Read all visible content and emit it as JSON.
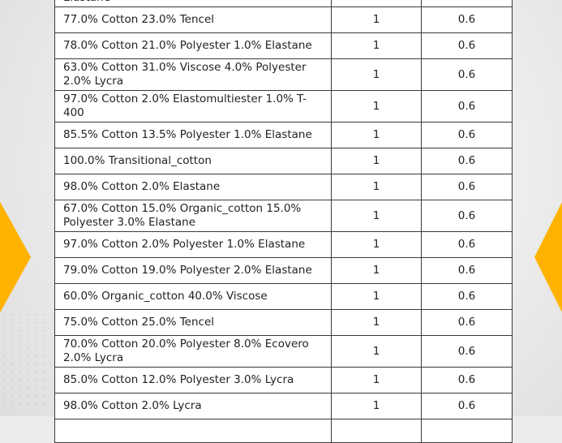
{
  "rows": [
    {
      "composition": "Elastane",
      "col2": "",
      "col3": ""
    },
    {
      "composition": "77.0% Cotton 23.0% Tencel",
      "col2": "1",
      "col3": "0.6"
    },
    {
      "composition": "78.0% Cotton 21.0% Polyester 1.0% Elastane",
      "col2": "1",
      "col3": "0.6"
    },
    {
      "composition": "63.0% Cotton 31.0% Viscose 4.0% Polyester 2.0% Lycra",
      "col2": "1",
      "col3": "0.6"
    },
    {
      "composition": "97.0% Cotton 2.0% Elastomultiester 1.0% T-400",
      "col2": "1",
      "col3": "0.6"
    },
    {
      "composition": "85.5% Cotton 13.5% Polyester 1.0% Elastane",
      "col2": "1",
      "col3": "0.6"
    },
    {
      "composition": "100.0% Transitional_cotton",
      "col2": "1",
      "col3": "0.6"
    },
    {
      "composition": "98.0% Cotton 2.0% Elastane",
      "col2": "1",
      "col3": "0.6"
    },
    {
      "composition": "67.0% Cotton 15.0% Organic_cotton 15.0% Polyester 3.0% Elastane",
      "col2": "1",
      "col3": "0.6"
    },
    {
      "composition": "97.0% Cotton 2.0% Polyester 1.0% Elastane",
      "col2": "1",
      "col3": "0.6"
    },
    {
      "composition": "79.0% Cotton 19.0% Polyester 2.0% Elastane",
      "col2": "1",
      "col3": "0.6"
    },
    {
      "composition": "60.0% Organic_cotton 40.0% Viscose",
      "col2": "1",
      "col3": "0.6"
    },
    {
      "composition": "75.0% Cotton 25.0% Tencel",
      "col2": "1",
      "col3": "0.6"
    },
    {
      "composition": "70.0% Cotton 20.0% Polyester 8.0% Ecovero 2.0% Lycra",
      "col2": "1",
      "col3": "0.6"
    },
    {
      "composition": "85.0% Cotton 12.0% Polyester 3.0% Lycra",
      "col2": "1",
      "col3": "0.6"
    },
    {
      "composition": "98.0% Cotton 2.0% Lycra",
      "col2": "1",
      "col3": "0.6"
    },
    {
      "composition": "",
      "col2": "",
      "col3": ""
    }
  ],
  "colors": {
    "accent": "#ffb300",
    "border": "#3a3a3a"
  }
}
